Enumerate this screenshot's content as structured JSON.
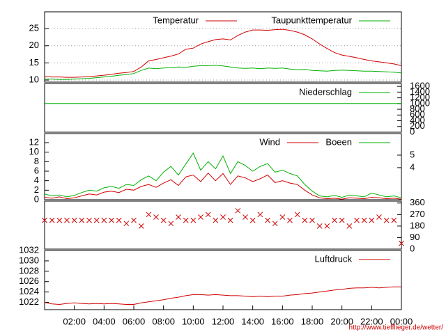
{
  "chart_data": [
    {
      "type": "line",
      "xlim": [
        0,
        24
      ],
      "ylim": [
        9.4,
        29.9
      ],
      "yticks": [
        10,
        15,
        20,
        25
      ],
      "grid": true,
      "x": [
        0,
        0.5,
        1,
        1.5,
        2,
        2.5,
        3,
        3.5,
        4,
        4.5,
        5,
        5.5,
        6,
        6.5,
        7,
        7.5,
        8,
        8.5,
        9,
        9.5,
        10,
        10.5,
        11,
        11.5,
        12,
        12.5,
        13,
        13.5,
        14,
        14.5,
        15,
        15.5,
        16,
        16.5,
        17,
        17.5,
        18,
        18.5,
        19,
        19.5,
        20,
        20.5,
        21,
        21.5,
        22,
        22.5,
        23,
        23.5,
        24
      ],
      "series": [
        {
          "name": "Temperatur",
          "color": "#d00000",
          "values": [
            11.0,
            10.9,
            10.9,
            10.8,
            10.8,
            10.9,
            11.0,
            11.2,
            11.4,
            11.7,
            12.0,
            12.2,
            12.5,
            13.8,
            15.6,
            16.0,
            16.5,
            17.0,
            17.6,
            19.0,
            19.3,
            20.5,
            21.2,
            21.8,
            22.0,
            21.7,
            23.0,
            24.0,
            24.6,
            24.6,
            24.5,
            24.7,
            24.8,
            24.5,
            24.0,
            23.2,
            22.0,
            20.5,
            19.2,
            18.0,
            17.3,
            16.9,
            16.5,
            16.0,
            15.6,
            15.3,
            15.0,
            14.7,
            14.2
          ]
        },
        {
          "name": "Taupunkttemperatur",
          "color": "#00b000",
          "values": [
            10.3,
            10.3,
            10.2,
            10.2,
            10.3,
            10.4,
            10.5,
            10.7,
            10.9,
            11.1,
            11.4,
            11.6,
            11.9,
            12.8,
            13.5,
            13.3,
            13.5,
            13.6,
            13.8,
            13.7,
            14.0,
            14.2,
            14.2,
            14.3,
            14.1,
            13.8,
            13.5,
            13.4,
            13.5,
            13.3,
            13.5,
            13.4,
            13.5,
            13.2,
            13.0,
            13.1,
            12.8,
            12.7,
            12.6,
            12.8,
            12.9,
            12.8,
            12.7,
            12.6,
            12.6,
            12.5,
            12.4,
            12.3,
            12.1
          ]
        }
      ]
    },
    {
      "type": "line",
      "xlim": [
        0,
        24
      ],
      "y2lim": [
        0,
        1700
      ],
      "y2ticks": [
        0,
        200,
        400,
        600,
        800,
        1000,
        1200,
        1400,
        1600
      ],
      "grid": false,
      "x": [
        0,
        24
      ],
      "series": [
        {
          "name": "Niederschlag",
          "color": "#00b000",
          "axis": "y2",
          "values": [
            1000,
            1000
          ]
        }
      ]
    },
    {
      "type": "line",
      "xlim": [
        0,
        24
      ],
      "ylim": [
        0,
        13.9
      ],
      "yticks": [
        0,
        2,
        4,
        6,
        8,
        10,
        12
      ],
      "y2lim": [
        1.44,
        6.72
      ],
      "y2ticks": [
        4,
        5
      ],
      "grid": false,
      "x": [
        0,
        0.5,
        1,
        1.5,
        2,
        2.5,
        3,
        3.5,
        4,
        4.5,
        5,
        5.5,
        6,
        6.5,
        7,
        7.5,
        8,
        8.5,
        9,
        9.5,
        10,
        10.5,
        11,
        11.5,
        12,
        12.5,
        13,
        13.5,
        14,
        14.5,
        15,
        15.5,
        16,
        16.5,
        17,
        17.5,
        18,
        18.5,
        19,
        19.5,
        20,
        20.5,
        21,
        21.5,
        22,
        22.5,
        23,
        23.5,
        24
      ],
      "series": [
        {
          "name": "Wind",
          "color": "#d00000",
          "values": [
            0.5,
            0.3,
            0.6,
            0.2,
            0.4,
            0.8,
            1.2,
            1.0,
            1.6,
            1.8,
            1.5,
            2.2,
            2.0,
            2.8,
            3.2,
            2.6,
            3.5,
            4.2,
            3.0,
            4.8,
            5.2,
            3.8,
            5.6,
            4.0,
            5.5,
            3.2,
            5.0,
            4.6,
            3.8,
            4.4,
            5.2,
            3.6,
            4.0,
            3.5,
            3.2,
            2.0,
            1.0,
            0.4,
            0.2,
            0.3,
            0.1,
            0.4,
            0.3,
            0.2,
            0.5,
            0.4,
            0.2,
            0.3,
            0.1
          ]
        },
        {
          "name": "Boeen",
          "color": "#00b000",
          "values": [
            1.2,
            0.8,
            1.0,
            0.6,
            0.9,
            1.5,
            2.0,
            1.8,
            2.5,
            2.8,
            2.4,
            3.2,
            3.0,
            4.2,
            5.0,
            4.0,
            5.8,
            7.0,
            5.2,
            7.5,
            9.8,
            6.2,
            8.0,
            6.5,
            9.2,
            5.5,
            8.0,
            7.2,
            6.0,
            7.0,
            7.6,
            5.8,
            6.2,
            5.5,
            5.0,
            3.2,
            1.8,
            0.8,
            0.6,
            0.9,
            0.5,
            1.0,
            0.8,
            0.6,
            1.4,
            1.0,
            0.6,
            0.8,
            0.4
          ]
        }
      ]
    },
    {
      "type": "scatter",
      "xlim": [
        0,
        24
      ],
      "y2lim": [
        0,
        375
      ],
      "y2ticks": [
        0,
        90,
        180,
        270,
        360
      ],
      "grid": false,
      "x": [
        0,
        0.5,
        1,
        1.5,
        2,
        2.5,
        3,
        3.5,
        4,
        4.5,
        5,
        5.5,
        6,
        6.5,
        7,
        7.5,
        8,
        8.5,
        9,
        9.5,
        10,
        10.5,
        11,
        11.5,
        12,
        12.5,
        13,
        13.5,
        14,
        14.5,
        15,
        15.5,
        16,
        16.5,
        17,
        17.5,
        18,
        18.5,
        19,
        19.5,
        20,
        20.5,
        21,
        21.5,
        22,
        22.5,
        23,
        23.5,
        24
      ],
      "series": [
        {
          "color": "#d00000",
          "axis": "y2",
          "values": [
            225,
            225,
            225,
            225,
            225,
            225,
            225,
            225,
            225,
            225,
            225,
            200,
            225,
            180,
            270,
            250,
            225,
            200,
            250,
            225,
            225,
            250,
            270,
            225,
            250,
            225,
            300,
            250,
            225,
            270,
            225,
            200,
            250,
            225,
            270,
            225,
            225,
            180,
            180,
            225,
            225,
            180,
            225,
            225,
            225,
            250,
            225,
            225,
            45
          ]
        }
      ]
    },
    {
      "type": "line",
      "xlim": [
        0,
        24
      ],
      "ylim": [
        1020.6,
        1032
      ],
      "yticks": [
        1022,
        1024,
        1026,
        1028,
        1030,
        1032
      ],
      "grid": false,
      "xticks": [
        {
          "value": 2,
          "label": "02:00"
        },
        {
          "value": 4,
          "label": "04:00"
        },
        {
          "value": 6,
          "label": "06:00"
        },
        {
          "value": 8,
          "label": "08:00"
        },
        {
          "value": 10,
          "label": "10:00"
        },
        {
          "value": 12,
          "label": "12:00"
        },
        {
          "value": 14,
          "label": "14:00"
        },
        {
          "value": 16,
          "label": "16:00"
        },
        {
          "value": 18,
          "label": "18:00"
        },
        {
          "value": 20,
          "label": "20:00"
        },
        {
          "value": 22,
          "label": "22:00"
        },
        {
          "value": 24,
          "label": "00:00"
        }
      ],
      "x": [
        0,
        0.5,
        1,
        1.5,
        2,
        2.5,
        3,
        3.5,
        4,
        4.5,
        5,
        5.5,
        6,
        6.5,
        7,
        7.5,
        8,
        8.5,
        9,
        9.5,
        10,
        10.5,
        11,
        11.5,
        12,
        12.5,
        13,
        13.5,
        14,
        14.5,
        15,
        15.5,
        16,
        16.5,
        17,
        17.5,
        18,
        18.5,
        19,
        19.5,
        20,
        20.5,
        21,
        21.5,
        22,
        22.5,
        23,
        23.5,
        24
      ],
      "series": [
        {
          "name": "Luftdruck",
          "color": "#d00000",
          "values": [
            1022.0,
            1021.7,
            1021.6,
            1021.8,
            1021.9,
            1021.8,
            1021.7,
            1021.8,
            1021.7,
            1021.8,
            1021.7,
            1021.6,
            1021.6,
            1021.9,
            1022.1,
            1022.3,
            1022.5,
            1022.8,
            1023.0,
            1023.3,
            1023.5,
            1023.5,
            1023.4,
            1023.5,
            1023.4,
            1023.3,
            1023.3,
            1023.2,
            1023.1,
            1023.2,
            1023.1,
            1023.2,
            1023.2,
            1023.4,
            1023.5,
            1023.7,
            1023.8,
            1024.0,
            1024.2,
            1024.4,
            1024.5,
            1024.7,
            1024.8,
            1024.8,
            1024.9,
            1024.8,
            1024.9,
            1025.0,
            1025.0
          ]
        }
      ]
    }
  ],
  "footer": "http://www.tiefflieger.de/wetter/"
}
